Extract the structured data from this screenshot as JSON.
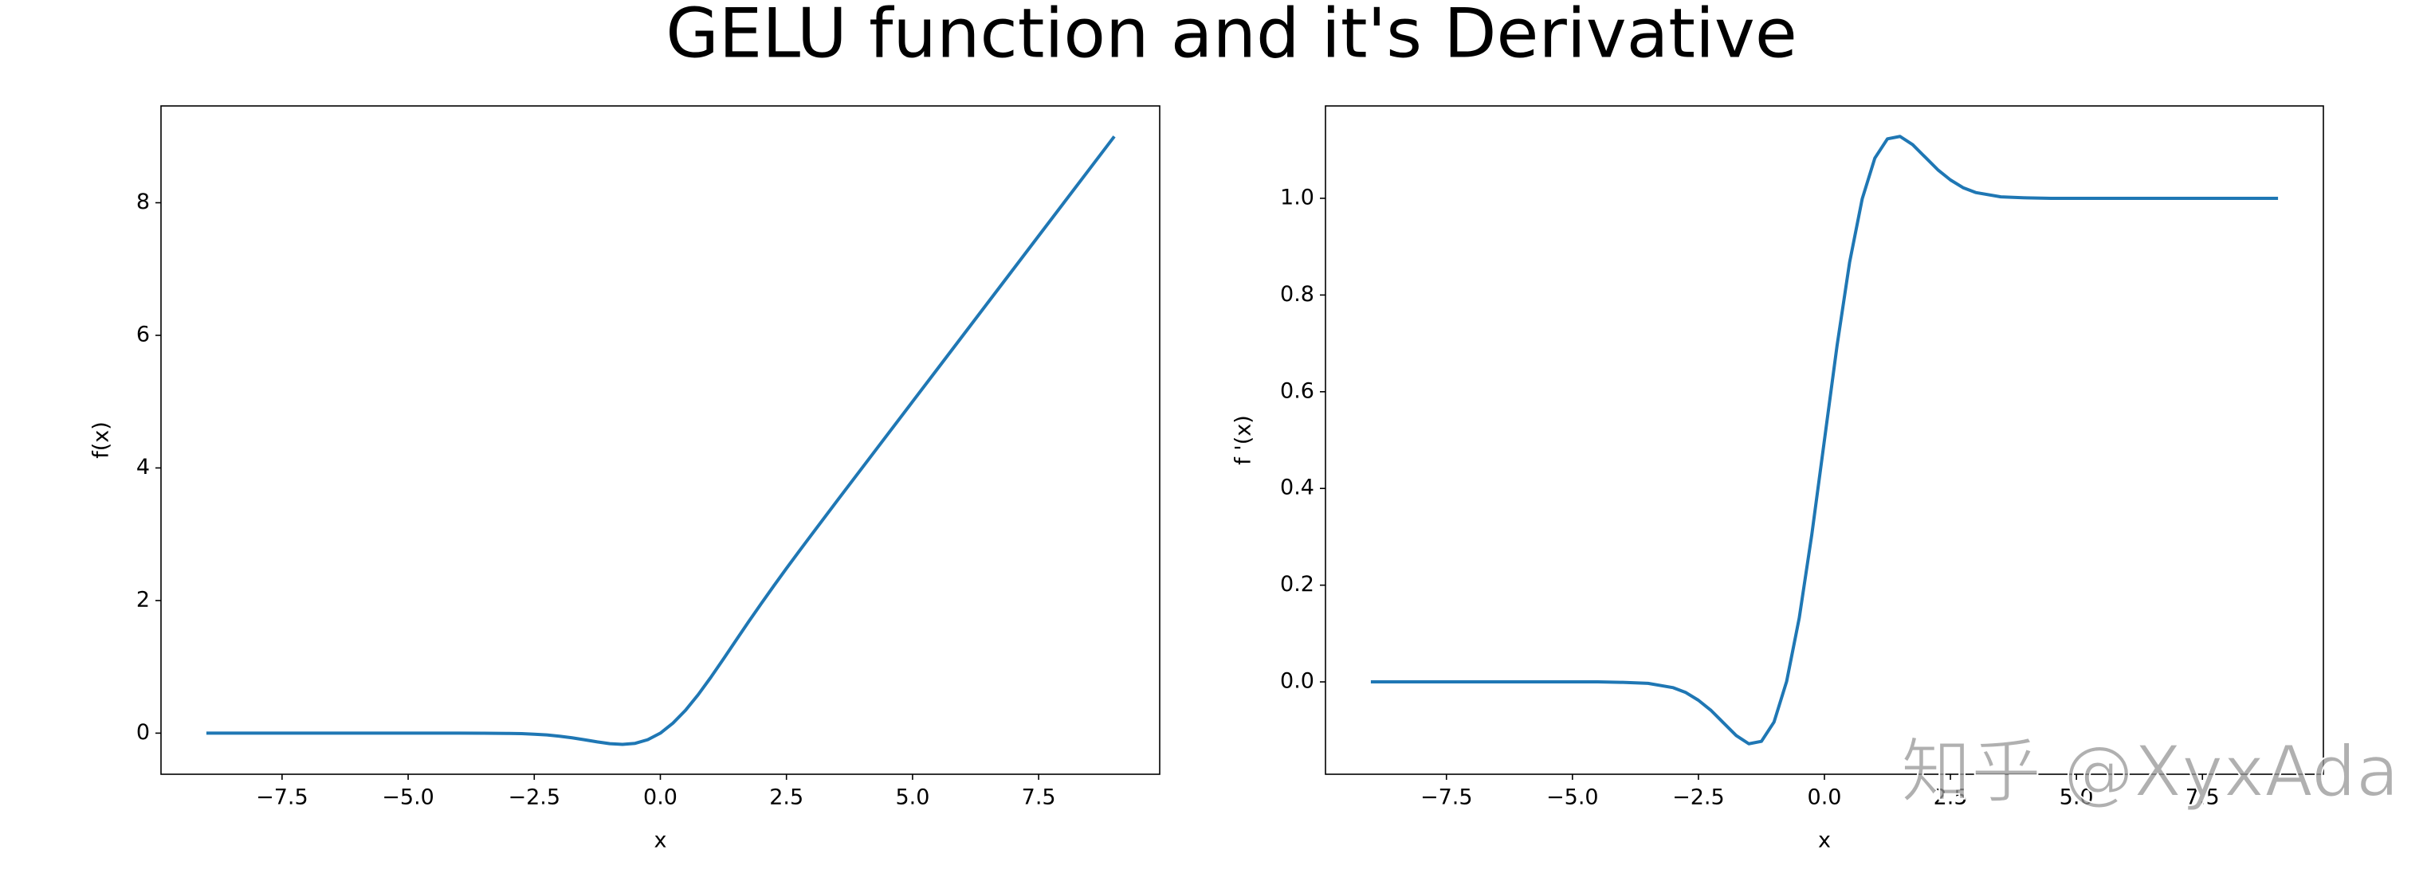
{
  "title": "GELU function and it's Derivative",
  "watermark": "知乎 @XyxAda",
  "chart_data": [
    {
      "type": "line",
      "xlabel": "x",
      "ylabel": "f(x)",
      "color": "#1f77b4",
      "x": [
        -9,
        -8.5,
        -8,
        -7.5,
        -7,
        -6.5,
        -6,
        -5.5,
        -5,
        -4.5,
        -4,
        -3.5,
        -3,
        -2.75,
        -2.5,
        -2.25,
        -2,
        -1.75,
        -1.5,
        -1.25,
        -1,
        -0.75,
        -0.5,
        -0.25,
        0,
        0.25,
        0.5,
        0.75,
        1,
        1.25,
        1.5,
        1.75,
        2,
        2.25,
        2.5,
        2.75,
        3,
        3.5,
        4,
        4.5,
        5,
        5.5,
        6,
        6.5,
        7,
        7.5,
        8,
        8.5,
        9
      ],
      "values": [
        0,
        0,
        0,
        0,
        0,
        0,
        0,
        0,
        0,
        0,
        0,
        -0.001,
        -0.004,
        -0.008,
        -0.016,
        -0.027,
        -0.046,
        -0.07,
        -0.1,
        -0.132,
        -0.159,
        -0.17,
        -0.154,
        -0.099,
        0,
        0.151,
        0.346,
        0.58,
        0.841,
        1.118,
        1.4,
        1.68,
        1.954,
        2.222,
        2.485,
        2.742,
        2.996,
        3.5,
        4,
        4.5,
        5,
        5.5,
        6,
        6.5,
        7,
        7.5,
        8,
        8.5,
        9
      ],
      "xlim": [
        -9.9,
        9.9
      ],
      "xticks": [
        {
          "value": -7.5,
          "label": "−7.5"
        },
        {
          "value": -5,
          "label": "−5.0"
        },
        {
          "value": -2.5,
          "label": "−2.5"
        },
        {
          "value": 0,
          "label": "0.0"
        },
        {
          "value": 2.5,
          "label": "2.5"
        },
        {
          "value": 5,
          "label": "5.0"
        },
        {
          "value": 7.5,
          "label": "7.5"
        }
      ],
      "ylim": [
        -0.62,
        9.46
      ],
      "yticks": [
        0,
        2,
        4,
        6,
        8
      ]
    },
    {
      "type": "line",
      "xlabel": "x",
      "ylabel": "f '(x)",
      "color": "#1f77b4",
      "x": [
        -9,
        -8.5,
        -8,
        -7.5,
        -7,
        -6.5,
        -6,
        -5.5,
        -5,
        -4.5,
        -4,
        -3.5,
        -3,
        -2.75,
        -2.5,
        -2.25,
        -2,
        -1.75,
        -1.5,
        -1.25,
        -1,
        -0.75,
        -0.5,
        -0.25,
        0,
        0.25,
        0.5,
        0.75,
        1,
        1.25,
        1.5,
        1.75,
        2,
        2.25,
        2.5,
        2.75,
        3,
        3.5,
        4,
        4.5,
        5,
        5.5,
        6,
        6.5,
        7,
        7.5,
        8,
        8.5,
        9
      ],
      "values": [
        0,
        0,
        0,
        0,
        0,
        0,
        0,
        0,
        0,
        0,
        -0.001,
        -0.003,
        -0.012,
        -0.022,
        -0.038,
        -0.059,
        -0.085,
        -0.111,
        -0.128,
        -0.123,
        -0.083,
        0.001,
        0.132,
        0.305,
        0.5,
        0.695,
        0.868,
        0.999,
        1.083,
        1.123,
        1.128,
        1.111,
        1.085,
        1.059,
        1.038,
        1.022,
        1.012,
        1.003,
        1.001,
        1,
        1,
        1,
        1,
        1,
        1,
        1,
        1,
        1,
        1
      ],
      "xlim": [
        -9.9,
        9.9
      ],
      "xticks": [
        {
          "value": -7.5,
          "label": "−7.5"
        },
        {
          "value": -5,
          "label": "−5.0"
        },
        {
          "value": -2.5,
          "label": "−2.5"
        },
        {
          "value": 0,
          "label": "0.0"
        },
        {
          "value": 2.5,
          "label": "2.5"
        },
        {
          "value": 5,
          "label": "5.0"
        },
        {
          "value": 7.5,
          "label": "7.5"
        }
      ],
      "ylim": [
        -0.191,
        1.191
      ],
      "yticks": [
        {
          "value": 0,
          "label": "0.0"
        },
        {
          "value": 0.2,
          "label": "0.2"
        },
        {
          "value": 0.4,
          "label": "0.4"
        },
        {
          "value": 0.6,
          "label": "0.6"
        },
        {
          "value": 0.8,
          "label": "0.8"
        },
        {
          "value": 1,
          "label": "1.0"
        }
      ]
    }
  ]
}
